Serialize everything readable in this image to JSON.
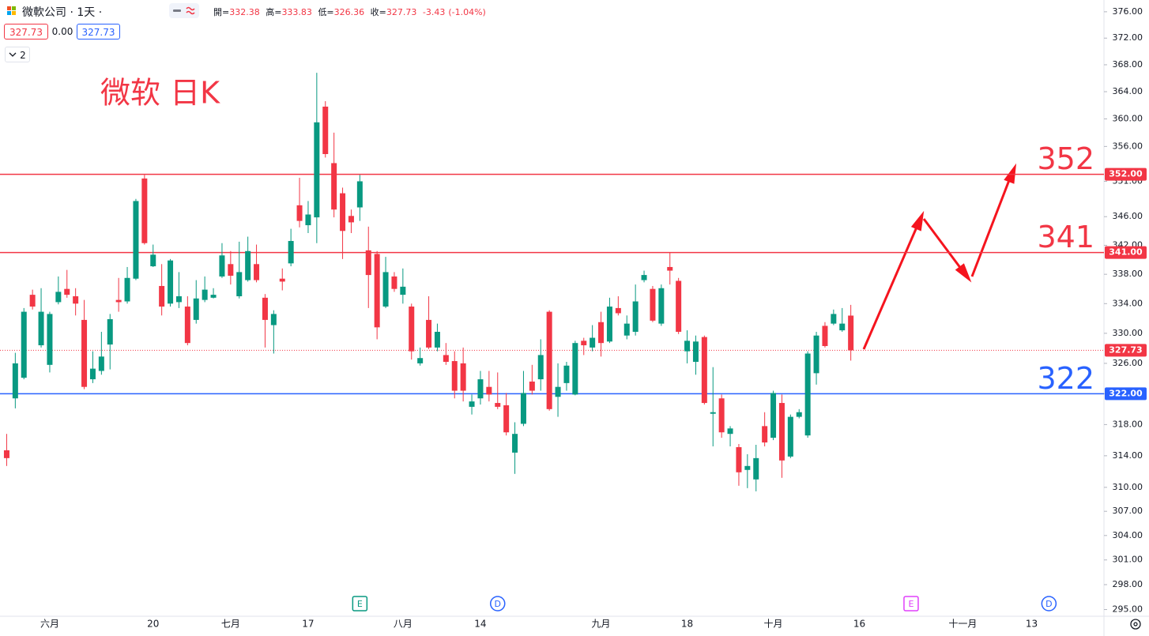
{
  "header": {
    "symbol_line": "微軟公司 · 1天 ·",
    "open_label": "開=",
    "high_label": "高=",
    "low_label": "低=",
    "close_label": "收=",
    "change": -3.43,
    "change_pct": "(-1.04%)"
  },
  "toolbar": {
    "bid": 327.73,
    "spread": "0.00",
    "ask": 327.73,
    "layouts": 2
  },
  "chart_data": {
    "type": "candlestick",
    "title": "微软 日K",
    "categories": [
      null,
      null,
      null,
      null,
      null,
      "六月",
      null,
      null,
      null,
      null,
      null,
      null,
      null,
      null,
      null,
      null,
      null,
      "20",
      null,
      null,
      null,
      null,
      null,
      null,
      null,
      null,
      "七月",
      null,
      null,
      null,
      null,
      null,
      null,
      null,
      null,
      "17",
      null,
      null,
      null,
      null,
      null,
      null,
      null,
      null,
      null,
      null,
      "八月",
      null,
      null,
      null,
      null,
      null,
      null,
      null,
      null,
      "14",
      null,
      null,
      null,
      null,
      null,
      null,
      null,
      null,
      null,
      null,
      null,
      null,
      null,
      "九月",
      null,
      null,
      null,
      null,
      null,
      null,
      null,
      null,
      null,
      "18",
      null,
      null,
      null,
      null,
      null,
      null,
      null,
      null,
      null,
      "十月",
      null,
      null,
      null,
      null,
      null,
      null,
      null,
      null,
      null,
      "16",
      null,
      null,
      null,
      null,
      null,
      null,
      null,
      null,
      null,
      null,
      null,
      "十一月",
      null,
      null,
      null,
      null,
      null,
      null,
      null,
      "13",
      null,
      null,
      null,
      null,
      null,
      null,
      null
    ],
    "open": [
      314.7,
      321.4,
      324.1,
      335.2,
      328.4,
      325.8,
      334.2,
      336.0,
      335.0,
      331.8,
      323.9,
      325.0,
      328.5,
      334.5,
      334.3,
      337.4,
      351.4,
      339.1,
      336.4,
      334.0,
      334.2,
      333.6,
      331.8,
      334.5,
      334.8,
      337.7,
      339.4,
      335.0,
      337.2,
      339.4,
      334.8,
      331.1,
      337.4,
      339.5,
      347.6,
      344.8,
      345.9,
      361.8,
      353.6,
      349.3,
      346.1,
      347.3,
      341.3,
      340.8,
      333.6,
      337.7,
      335.2,
      333.6,
      326.0,
      331.8,
      328.1,
      327.1,
      326.3,
      326.0,
      320.3,
      321.4,
      322.9,
      320.8,
      320.5,
      314.4,
      318.1,
      323.6,
      323.9,
      332.9,
      321.6,
      323.4,
      321.9,
      329.0,
      328.1,
      331.5,
      328.9,
      333.4,
      329.7,
      330.2,
      337.2,
      336.0,
      331.3,
      339.0,
      337.1,
      327.6,
      326.2,
      329.5,
      319.4,
      321.4,
      316.8,
      315.1,
      312.2,
      311.0,
      317.8,
      316.3,
      320.8,
      313.9,
      319.0,
      316.6,
      324.7,
      331.0,
      331.3,
      330.4,
      332.38,
      null,
      null,
      null,
      null,
      null,
      null,
      null,
      null,
      null,
      null,
      null,
      null,
      null,
      null,
      null,
      null,
      null,
      null,
      null,
      null,
      null,
      null,
      null,
      null,
      null,
      null,
      null,
      null
    ],
    "high": [
      316.8,
      327.4,
      333.4,
      335.9,
      336.1,
      332.9,
      337.7,
      338.6,
      336.1,
      334.5,
      327.6,
      330.2,
      332.6,
      337.5,
      339.0,
      348.5,
      351.9,
      342.1,
      339.4,
      340.1,
      338.3,
      335.0,
      337.2,
      337.7,
      336.1,
      342.3,
      341.2,
      342.5,
      343.2,
      342.1,
      335.3,
      333.1,
      338.8,
      344.3,
      351.5,
      348.2,
      366.8,
      362.6,
      358.0,
      350.1,
      347.0,
      351.9,
      344.6,
      341.2,
      340.4,
      338.3,
      338.8,
      334.0,
      328.1,
      335.0,
      331.3,
      328.7,
      327.6,
      328.1,
      321.9,
      325.0,
      325.0,
      324.8,
      322.1,
      318.3,
      325.0,
      325.8,
      329.2,
      333.1,
      326.0,
      326.2,
      329.0,
      329.4,
      331.1,
      332.9,
      334.8,
      335.0,
      332.4,
      336.6,
      338.5,
      336.4,
      336.6,
      341.0,
      337.5,
      330.4,
      329.7,
      329.7,
      325.5,
      321.9,
      317.8,
      315.5,
      314.2,
      315.4,
      319.6,
      322.4,
      321.9,
      319.3,
      320.0,
      327.6,
      330.2,
      331.5,
      333.2,
      333.4,
      333.83,
      null,
      null,
      null,
      null,
      null,
      null,
      null,
      null,
      null,
      null,
      null,
      null,
      null,
      null,
      null,
      null,
      null,
      null,
      null,
      null,
      null,
      null,
      null,
      null,
      null,
      null,
      null,
      null
    ],
    "low": [
      312.7,
      320.1,
      323.9,
      333.2,
      328.1,
      324.8,
      333.9,
      334.8,
      332.4,
      322.6,
      323.4,
      324.5,
      325.2,
      332.9,
      334.0,
      337.2,
      342.1,
      339.0,
      332.4,
      333.6,
      333.4,
      328.4,
      331.3,
      334.2,
      334.7,
      337.5,
      336.6,
      334.7,
      337.0,
      336.9,
      328.1,
      327.3,
      335.8,
      339.1,
      344.5,
      343.7,
      342.3,
      354.4,
      345.9,
      340.1,
      343.7,
      345.4,
      333.4,
      329.2,
      333.4,
      335.6,
      334.0,
      326.5,
      325.7,
      327.9,
      327.6,
      325.8,
      321.4,
      321.0,
      319.3,
      320.6,
      321.0,
      320.0,
      316.6,
      311.7,
      317.8,
      321.9,
      322.4,
      319.8,
      319.0,
      322.4,
      321.8,
      327.1,
      327.6,
      326.9,
      328.7,
      332.4,
      329.2,
      329.7,
      336.9,
      331.5,
      331.0,
      336.6,
      329.9,
      326.0,
      324.5,
      320.6,
      315.2,
      316.3,
      315.2,
      310.2,
      309.9,
      309.5,
      315.2,
      316.0,
      311.2,
      313.7,
      318.8,
      316.3,
      323.2,
      328.1,
      331.1,
      330.2,
      326.36,
      null,
      null,
      null,
      null,
      null,
      null,
      null,
      null,
      null,
      null,
      null,
      null,
      null,
      null,
      null,
      null,
      null,
      null,
      null,
      null,
      null,
      null,
      null,
      null,
      null,
      null,
      null,
      null
    ],
    "close": [
      313.7,
      326.0,
      332.9,
      333.6,
      332.9,
      332.6,
      335.6,
      335.2,
      334.0,
      322.9,
      325.3,
      326.9,
      331.9,
      334.2,
      337.5,
      348.2,
      342.3,
      340.7,
      333.6,
      339.9,
      335.0,
      328.7,
      334.7,
      335.9,
      335.2,
      340.6,
      337.8,
      338.3,
      341.2,
      337.2,
      331.8,
      332.6,
      337.0,
      342.6,
      345.4,
      346.3,
      359.5,
      354.9,
      347.0,
      344.0,
      345.2,
      351.0,
      337.9,
      330.8,
      338.3,
      336.0,
      336.3,
      327.6,
      326.7,
      328.1,
      330.2,
      326.2,
      322.4,
      322.4,
      321.0,
      323.9,
      321.9,
      320.3,
      317.0,
      316.8,
      322.1,
      322.4,
      327.1,
      320.0,
      322.9,
      325.7,
      328.7,
      328.4,
      329.4,
      328.7,
      333.6,
      332.7,
      331.3,
      334.3,
      337.9,
      331.7,
      336.1,
      338.5,
      330.2,
      329.0,
      328.9,
      320.8,
      319.6,
      317.0,
      317.5,
      311.9,
      312.7,
      313.7,
      315.7,
      322.1,
      313.4,
      319.0,
      319.6,
      327.3,
      329.7,
      328.3,
      332.6,
      331.3,
      327.73,
      null,
      null,
      null,
      null,
      null,
      null,
      null,
      null,
      null,
      null,
      null,
      null,
      null,
      null,
      null,
      null,
      null,
      null,
      null,
      null,
      null,
      null,
      null,
      null,
      null,
      null,
      null,
      null
    ],
    "up_color": "#089981",
    "down_color": "#f23645",
    "ylim": [
      294.2,
      377.8
    ],
    "log_scale": true,
    "grid": false,
    "yticks": [
      {
        "value": 376,
        "label": "376.00"
      },
      {
        "value": 372,
        "label": "372.00"
      },
      {
        "value": 368,
        "label": "368.00"
      },
      {
        "value": 364,
        "label": "364.00"
      },
      {
        "value": 360,
        "label": "360.00"
      },
      {
        "value": 356,
        "label": "356.00"
      },
      {
        "value": 351,
        "label": "351.00"
      },
      {
        "value": 346,
        "label": "346.00"
      },
      {
        "value": 342,
        "label": "342.00"
      },
      {
        "value": 338,
        "label": "338.00"
      },
      {
        "value": 334,
        "label": "334.00"
      },
      {
        "value": 330,
        "label": "330.00"
      },
      {
        "value": 326,
        "label": "326.00"
      },
      {
        "value": 322,
        "label": "322.00"
      },
      {
        "value": 318,
        "label": "318.00"
      },
      {
        "value": 314,
        "label": "314.00"
      },
      {
        "value": 310,
        "label": "310.00"
      },
      {
        "value": 307,
        "label": "307.00"
      },
      {
        "value": 304,
        "label": "304.00"
      },
      {
        "value": 301,
        "label": "301.00"
      },
      {
        "value": 298,
        "label": "298.00"
      },
      {
        "value": 295,
        "label": "295.00"
      }
    ],
    "hlines": [
      {
        "value": 352,
        "label": "352.00",
        "annotation": "352",
        "color": "#f23645"
      },
      {
        "value": 341,
        "label": "341.00",
        "annotation": "341",
        "color": "#f23645"
      },
      {
        "value": 322,
        "label": "322.00",
        "annotation": "322",
        "color": "#2962ff"
      }
    ],
    "markers": [
      null,
      null,
      null,
      null,
      null,
      null,
      null,
      null,
      null,
      null,
      null,
      null,
      null,
      null,
      null,
      null,
      null,
      null,
      null,
      null,
      null,
      null,
      null,
      null,
      null,
      null,
      null,
      null,
      null,
      null,
      null,
      null,
      null,
      null,
      null,
      null,
      null,
      null,
      null,
      null,
      null,
      {
        "text": "E",
        "color": "#089981"
      },
      null,
      null,
      null,
      null,
      null,
      null,
      null,
      null,
      null,
      null,
      null,
      null,
      null,
      null,
      null,
      {
        "text": "D",
        "color": "#2962ff"
      },
      null,
      null,
      null,
      null,
      null,
      null,
      null,
      null,
      null,
      null,
      null,
      null,
      null,
      null,
      null,
      null,
      null,
      null,
      null,
      null,
      null,
      null,
      null,
      null,
      null,
      null,
      null,
      null,
      null,
      null,
      null,
      null,
      null,
      null,
      null,
      null,
      null,
      null,
      null,
      null,
      null,
      null,
      null,
      null,
      null,
      null,
      null,
      {
        "text": "E",
        "color": "#e040fb"
      },
      null,
      null,
      null,
      null,
      null,
      null,
      null,
      null,
      null,
      null,
      null,
      null,
      null,
      null,
      null,
      {
        "text": "D",
        "color": "#2962ff"
      },
      null,
      null,
      null,
      null,
      null
    ]
  }
}
